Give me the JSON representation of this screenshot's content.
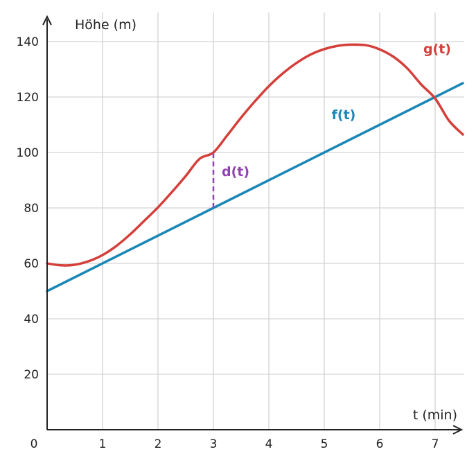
{
  "chart_data": {
    "type": "line",
    "xlabel": "t (min)",
    "ylabel": "Höhe (m)",
    "origin_label": "0",
    "xlim": [
      0,
      7.5
    ],
    "ylim": [
      0,
      150
    ],
    "x_ticks": [
      1,
      2,
      3,
      4,
      5,
      6,
      7
    ],
    "y_ticks": [
      20,
      40,
      60,
      80,
      100,
      120,
      140
    ],
    "grid": true,
    "series": [
      {
        "name": "f(t)",
        "color": "#1a87b5",
        "x": [
          0,
          7.5
        ],
        "y": [
          50,
          125
        ]
      },
      {
        "name": "g(t)",
        "color": "#d43f3a",
        "x": [
          0,
          0.25,
          0.5,
          0.75,
          1,
          1.25,
          1.5,
          1.75,
          2,
          2.25,
          2.5,
          2.75,
          3,
          3.25,
          3.5,
          3.75,
          4,
          4.25,
          4.5,
          4.75,
          5,
          5.25,
          5.5,
          5.75,
          6,
          6.25,
          6.5,
          6.75,
          7,
          7.25,
          7.5
        ],
        "y": [
          60,
          59.3,
          59.5,
          60.8,
          63,
          66.3,
          70.5,
          75.3,
          80.2,
          85.7,
          91.5,
          97.7,
          100,
          106.2,
          112.6,
          118.5,
          123.9,
          128.5,
          132.3,
          135.3,
          137.3,
          138.5,
          138.9,
          138.7,
          137.2,
          134.5,
          130.3,
          124.5,
          119.5,
          111.5,
          106.5
        ]
      }
    ],
    "annotation": {
      "label": "d(t)",
      "color": "#8e44ad",
      "x": 3,
      "y_from": 80,
      "y_to": 100
    }
  }
}
